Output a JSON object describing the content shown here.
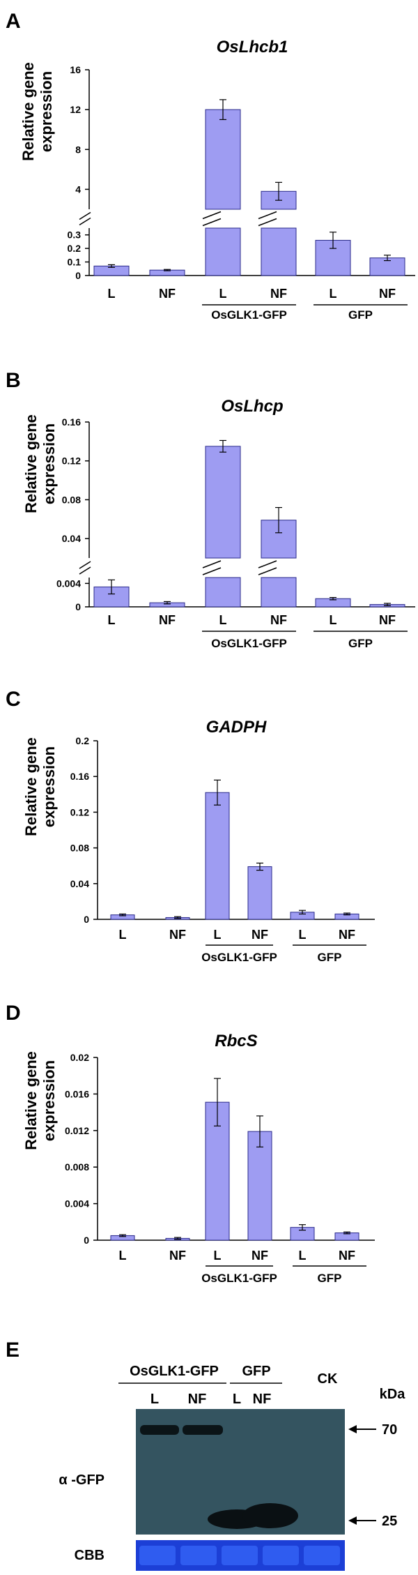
{
  "chart_data": [
    {
      "panel": "A",
      "type": "bar",
      "title": "OsLhcb1",
      "ylabel": [
        "Relative gene",
        "expression"
      ],
      "categories": [
        "L",
        "NF",
        "L",
        "NF",
        "L",
        "NF"
      ],
      "groups": [
        {
          "label": "OsGLK1-GFP",
          "from": 2,
          "to": 3
        },
        {
          "label": "GFP",
          "from": 4,
          "to": 5
        }
      ],
      "values": [
        0.07,
        0.04,
        12.0,
        3.8,
        0.26,
        0.13
      ],
      "errors": [
        0.01,
        0.005,
        1.0,
        0.9,
        0.06,
        0.02
      ],
      "axis_break": true,
      "lower_ylim": [
        0,
        0.35
      ],
      "lower_ticks": [
        "0",
        "0.1",
        "0.2",
        "0.3"
      ],
      "upper_ylim": [
        2,
        16
      ],
      "upper_ticks": [
        "4",
        "8",
        "12",
        "16"
      ]
    },
    {
      "panel": "B",
      "type": "bar",
      "title": "OsLhcp",
      "ylabel": [
        "Relative gene",
        "expression"
      ],
      "categories": [
        "L",
        "NF",
        "L",
        "NF",
        "L",
        "NF"
      ],
      "groups": [
        {
          "label": "OsGLK1-GFP",
          "from": 2,
          "to": 3
        },
        {
          "label": "GFP",
          "from": 4,
          "to": 5
        }
      ],
      "values": [
        0.0034,
        0.0007,
        0.135,
        0.059,
        0.0014,
        0.0004
      ],
      "errors": [
        0.0012,
        0.0002,
        0.006,
        0.013,
        0.0002,
        0.0002
      ],
      "axis_break": true,
      "lower_ylim": [
        0,
        0.005
      ],
      "lower_ticks": [
        "0",
        "0.004"
      ],
      "upper_ylim": [
        0.02,
        0.16
      ],
      "upper_ticks": [
        "0.04",
        "0.08",
        "0.12",
        "0.16"
      ]
    },
    {
      "panel": "C",
      "type": "bar",
      "title": "GADPH",
      "ylabel": [
        "Relative gene",
        "expression"
      ],
      "categories": [
        "L",
        "NF",
        "L",
        "NF",
        "L",
        "NF"
      ],
      "groups": [
        {
          "label": "OsGLK1-GFP",
          "from": 2,
          "to": 3
        },
        {
          "label": "GFP",
          "from": 4,
          "to": 5
        }
      ],
      "values": [
        0.005,
        0.002,
        0.142,
        0.059,
        0.008,
        0.006
      ],
      "errors": [
        0.001,
        0.001,
        0.014,
        0.004,
        0.002,
        0.001
      ],
      "ylim": [
        0,
        0.2
      ],
      "yticks": [
        "0",
        "0.04",
        "0.08",
        "0.12",
        "0.16",
        "0.2"
      ]
    },
    {
      "panel": "D",
      "type": "bar",
      "title": "RbcS",
      "ylabel": [
        "Relative gene",
        "expression"
      ],
      "categories": [
        "L",
        "NF",
        "L",
        "NF",
        "L",
        "NF"
      ],
      "groups": [
        {
          "label": "OsGLK1-GFP",
          "from": 2,
          "to": 3
        },
        {
          "label": "GFP",
          "from": 4,
          "to": 5
        }
      ],
      "values": [
        0.0005,
        0.0002,
        0.0151,
        0.0119,
        0.0014,
        0.0008
      ],
      "errors": [
        0.0001,
        0.0001,
        0.0026,
        0.0017,
        0.0003,
        0.0001
      ],
      "ylim": [
        0,
        0.02
      ],
      "yticks": [
        "0",
        "0.004",
        "0.008",
        "0.012",
        "0.016",
        "0.02"
      ]
    }
  ],
  "blot": {
    "panel": "E",
    "groups": [
      {
        "label": "OsGLK1-GFP",
        "lanes": [
          "L",
          "NF"
        ]
      },
      {
        "label": "GFP",
        "lanes": [
          "L",
          "NF"
        ]
      }
    ],
    "control_label": "CK",
    "unit_label": "kDa",
    "antibody_label": "α -GFP",
    "markers": [
      "70",
      "25"
    ],
    "loading_label": "CBB"
  }
}
